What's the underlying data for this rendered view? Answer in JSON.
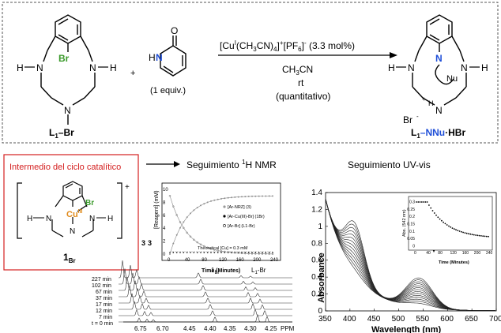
{
  "reaction": {
    "reactant_atoms": {
      "h_left": "H",
      "n_left": "N",
      "br": "Br",
      "n_right": "N",
      "h_right": "H",
      "n_center": "N"
    },
    "reactant_label": "L",
    "reactant_label_sub": "1",
    "reactant_label_suffix": "–Br",
    "pyridone_o": "O",
    "pyridone_nh": "N",
    "pyridone_h": "H",
    "plus": "+",
    "one_equiv": "(1 equiv.)",
    "reagent_line": "[Cu",
    "reagent_sup": "I",
    "reagent_mid": "(CH",
    "reagent_sub3": "3",
    "reagent_cn": "CN)",
    "reagent_sub4": "4",
    "reagent_close": "]",
    "reagent_plus": "+",
    "reagent_pf6": "[PF",
    "reagent_sub6": "6",
    "reagent_minus": "]",
    "reagent_minus_sup": "-",
    "reagent_load": " (3.3 mol%)",
    "solvent_ch": "CH",
    "solvent_sub": "3",
    "solvent_cn": "CN",
    "temp": "rt",
    "yield": "(quantitativo)",
    "product_atoms": {
      "h_left": "H",
      "n_left": "N",
      "n_aryl": "N",
      "nu": "Nu",
      "n_right": "N",
      "h_right": "H",
      "nh_plus": "N",
      "h_plus": "H",
      "br_anion": "Br"
    },
    "product_label": "L",
    "product_label_sub": "1",
    "product_label_n": "–NNu",
    "product_label_suffix": "·HBr"
  },
  "intermediate": {
    "title": "Intermedio del ciclo catalítico",
    "cu": "Cu",
    "cu_ox": "III",
    "br": "Br",
    "n_left": "N",
    "n_right": "N",
    "n_bottom": "N",
    "h_left": "H",
    "h_right": "H",
    "charge": "+",
    "label": "1",
    "label_sub": "Br"
  },
  "nmr": {
    "title": "Seguimiento ",
    "title_sup": "1",
    "title_rest": "H NMR",
    "times": [
      "227 min",
      "102 min",
      "67 min",
      "37 min",
      "17 min",
      "12 min",
      "7 min",
      "t = 0 min"
    ],
    "x_ticks": [
      "6.75",
      "6.70",
      "4.45",
      "4.40",
      "4.35",
      "4.30",
      "4.25"
    ],
    "x_unit": "PPM",
    "peak_labels": {
      "p3": "3",
      "p3b": "3",
      "p1br": "1",
      "p1br_sub": "Br",
      "pl1": "L",
      "pl1_sub": "1",
      "pl1_suffix": "-Br"
    },
    "inset": {
      "ylabel": "[Reagent] (mM)",
      "xlabel": "Time (Minutes)",
      "y_ticks": [
        "0",
        "2",
        "4",
        "6",
        "8",
        "10"
      ],
      "x_ticks": [
        "0",
        "40",
        "80",
        "120",
        "160",
        "200",
        "240"
      ],
      "legend": [
        "[Ar-NRZ] (3)",
        "[Ar-Cu(III)-Br] (1Br)",
        "[Ar-Br] (L1-Br)"
      ],
      "note": "Theoretical [Cu] = 0.3 mM"
    }
  },
  "uv": {
    "title": "Seguimiento UV-vis",
    "ylabel": "Absorbance",
    "xlabel": "Wavelength (nm)",
    "y_ticks": [
      "0",
      "0.2",
      "0.4",
      "0.6",
      "0.8",
      "1",
      "1.2",
      "1.4"
    ],
    "x_ticks": [
      "350",
      "400",
      "450",
      "500",
      "550",
      "600",
      "650",
      "700"
    ],
    "inset": {
      "ylabel": "Abs. (542 nm)",
      "xlabel": "Time (Minutes)",
      "y_ticks": [
        "0",
        "0.05",
        "0.1",
        "0.15",
        "0.2",
        "0.25",
        "0.3"
      ],
      "x_ticks": [
        "0",
        "40",
        "80",
        "120",
        "160",
        "200",
        "240"
      ]
    }
  },
  "colors": {
    "green": "#3a9a2a",
    "blue": "#1f4fd8",
    "red": "#d42020",
    "orange": "#e08a1a",
    "dash": "#555555"
  }
}
